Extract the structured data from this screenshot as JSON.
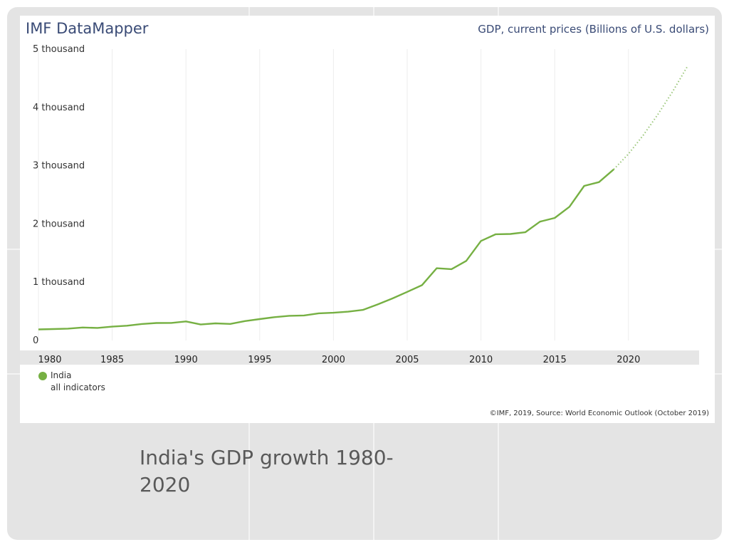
{
  "header": {
    "brand": "IMF DataMapper",
    "series_title": "GDP, current prices (Billions of U.S. dollars)"
  },
  "legend": {
    "name": "India",
    "subtitle": "all indicators",
    "color": "#76b043"
  },
  "credit": "©IMF, 2019, Source: World Economic Outlook (October 2019)",
  "caption": "India's GDP growth 1980-2020",
  "chart_data": {
    "type": "line",
    "ylim": [
      0,
      5000
    ],
    "xlim": [
      1980,
      2024
    ],
    "y_ticks": [
      {
        "value": 0,
        "label": "0"
      },
      {
        "value": 1000,
        "label": "1 thousand"
      },
      {
        "value": 2000,
        "label": "2 thousand"
      },
      {
        "value": 3000,
        "label": "3 thousand"
      },
      {
        "value": 4000,
        "label": "4 thousand"
      },
      {
        "value": 5000,
        "label": "5 thousand"
      }
    ],
    "x_ticks": [
      1980,
      1985,
      1990,
      1995,
      2000,
      2005,
      2010,
      2015,
      2020
    ],
    "grid": "vertical",
    "series": [
      {
        "name": "India",
        "color": "#76b043",
        "x": [
          1980,
          1981,
          1982,
          1983,
          1984,
          1985,
          1986,
          1987,
          1988,
          1989,
          1990,
          1991,
          1992,
          1993,
          1994,
          1995,
          1996,
          1997,
          1998,
          1999,
          2000,
          2001,
          2002,
          2003,
          2004,
          2005,
          2006,
          2007,
          2008,
          2009,
          2010,
          2011,
          2012,
          2013,
          2014,
          2015,
          2016,
          2017,
          2018,
          2019
        ],
        "values": [
          189,
          196,
          203,
          222,
          215,
          237,
          253,
          283,
          300,
          301,
          327,
          274,
          293,
          284,
          333,
          367,
          400,
          423,
          429,
          466,
          476,
          494,
          524,
          618,
          721,
          834,
          949,
          1239,
          1224,
          1365,
          1708,
          1823,
          1828,
          1857,
          2039,
          2103,
          2295,
          2653,
          2718,
          2936
        ]
      },
      {
        "name": "",
        "style": "dotted",
        "color": "#9bc77a",
        "x": [
          2019,
          2020,
          2021,
          2022,
          2023,
          2024
        ],
        "values": [
          2936,
          3202,
          3522,
          3882,
          4275,
          4706
        ]
      }
    ]
  }
}
